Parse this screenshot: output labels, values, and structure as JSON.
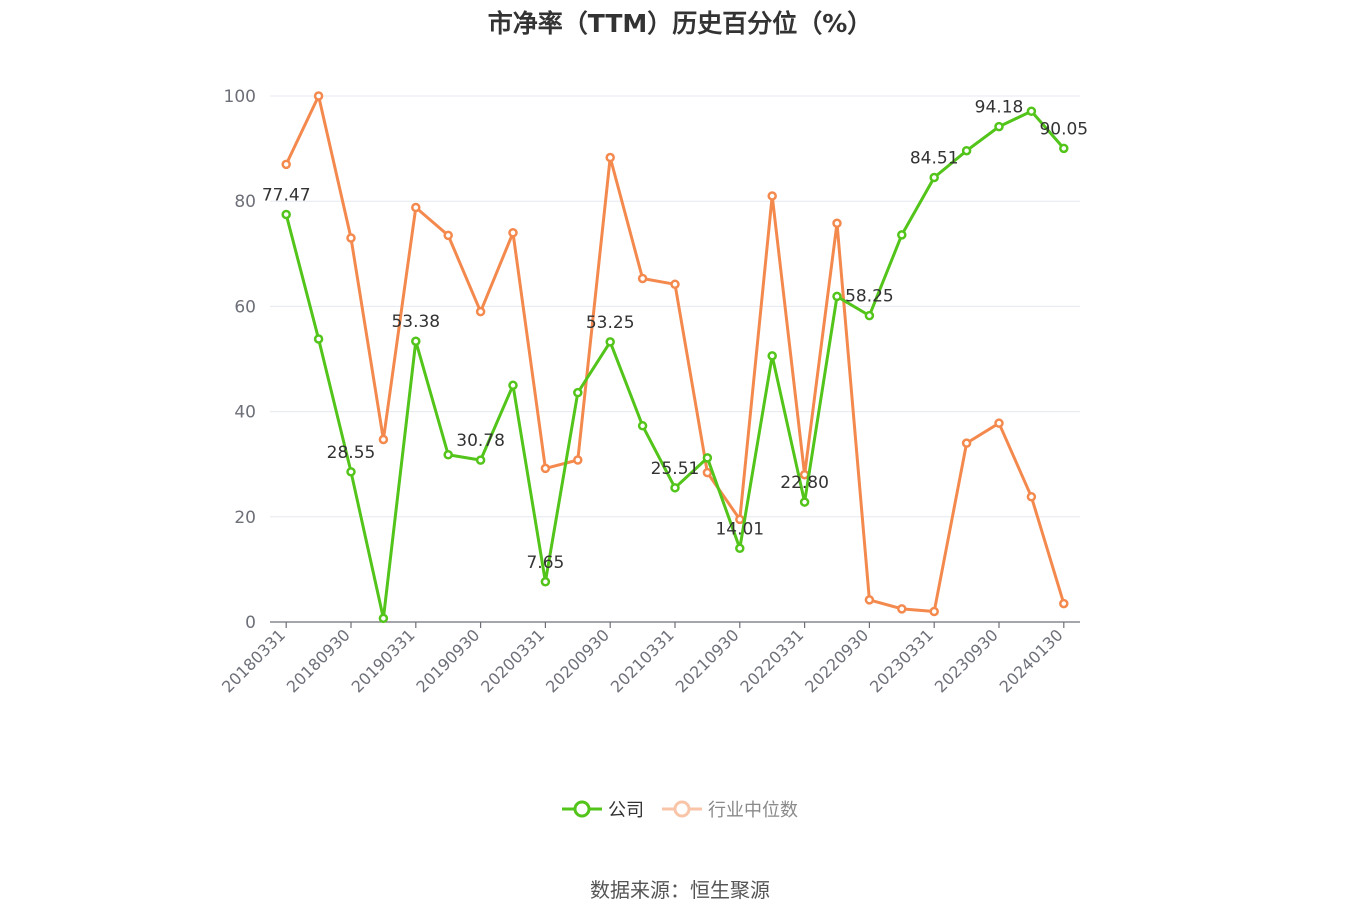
{
  "chart_data": {
    "type": "line",
    "title": "市净率（TTM）历史百分位（%）",
    "xlabel": "",
    "ylabel": "",
    "ylim": [
      0,
      100
    ],
    "yticks": [
      0,
      20,
      40,
      60,
      80,
      100
    ],
    "grid": true,
    "legend_position": "bottom",
    "x": [
      "20180331",
      "20180630",
      "20180930",
      "20181231",
      "20190331",
      "20190630",
      "20190930",
      "20191231",
      "20200331",
      "20200630",
      "20200930",
      "20201231",
      "20210331",
      "20210630",
      "20210930",
      "20211231",
      "20220331",
      "20220630",
      "20220930",
      "20221231",
      "20230331",
      "20230630",
      "20230930",
      "20231231",
      "20240130"
    ],
    "xtick_labels": [
      "20180331",
      "20180930",
      "20190331",
      "20190930",
      "20200331",
      "20200930",
      "20210331",
      "20210930",
      "20220331",
      "20220930",
      "20230331",
      "20230930",
      "20240130"
    ],
    "series": [
      {
        "name": "公司",
        "color": "#52c41a",
        "values": [
          77.47,
          53.8,
          28.55,
          0.7,
          53.38,
          31.8,
          30.78,
          45.0,
          7.65,
          43.6,
          53.25,
          37.3,
          25.51,
          31.2,
          14.01,
          50.6,
          22.8,
          61.9,
          58.25,
          73.6,
          84.51,
          89.6,
          94.18,
          97.1,
          90.05
        ],
        "labels": [
          "77.47",
          "",
          "28.55",
          "",
          "53.38",
          "",
          "30.78",
          "",
          "7.65",
          "",
          "53.25",
          "",
          "25.51",
          "",
          "14.01",
          "",
          "22.80",
          "",
          "58.25",
          "",
          "84.51",
          "",
          "94.18",
          "",
          "90.05"
        ]
      },
      {
        "name": "行业中位数",
        "color": "#f4894e",
        "values": [
          87.0,
          100.0,
          73.0,
          34.7,
          78.8,
          73.5,
          59.0,
          74.0,
          29.2,
          30.8,
          88.3,
          65.3,
          64.2,
          28.4,
          19.5,
          81.0,
          28.0,
          75.8,
          4.2,
          2.5,
          2.0,
          34.0,
          37.8,
          23.8,
          3.5
        ]
      }
    ]
  },
  "legend": {
    "company": "公司",
    "industry": "行业中位数"
  },
  "source": "数据来源：恒生聚源"
}
